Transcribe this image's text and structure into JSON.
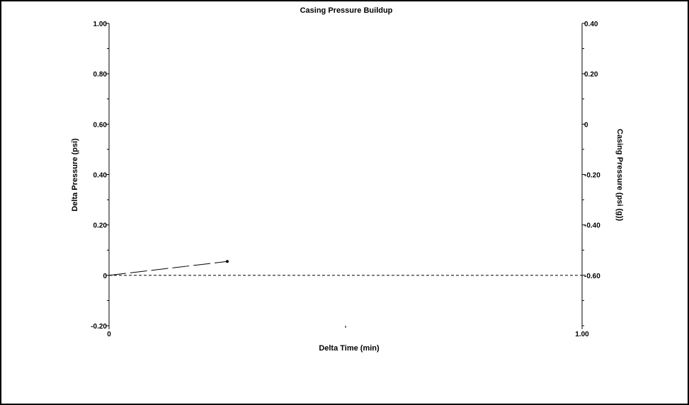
{
  "chart_data": {
    "type": "line",
    "title": "Casing Pressure Buildup",
    "xlabel": "Delta Time (min)",
    "ylabel": "Delta Pressure (psi)",
    "y2label": "Casing Pressure (psi (g))",
    "xlim": [
      0,
      1.0
    ],
    "ylim": [
      -0.2,
      1.0
    ],
    "y2lim": [
      -0.8,
      0.4
    ],
    "x_ticks": [
      {
        "value": 0,
        "label": "0"
      },
      {
        "value": 1.0,
        "label": "1.00"
      }
    ],
    "x_minor_ticks": [
      0.5
    ],
    "y_ticks": [
      {
        "value": -0.2,
        "label": "-0.20"
      },
      {
        "value": 0,
        "label": "0"
      },
      {
        "value": 0.2,
        "label": "0.20"
      },
      {
        "value": 0.4,
        "label": "0.40"
      },
      {
        "value": 0.6,
        "label": "0.60"
      },
      {
        "value": 0.8,
        "label": "0.80"
      },
      {
        "value": 1.0,
        "label": "1.00"
      }
    ],
    "y2_ticks": [
      {
        "value": -0.6,
        "label": "-0.60"
      },
      {
        "value": -0.4,
        "label": "-0.40"
      },
      {
        "value": -0.2,
        "label": "-0.20"
      },
      {
        "value": 0,
        "label": "0"
      },
      {
        "value": 0.2,
        "label": "0.20"
      },
      {
        "value": 0.4,
        "label": "0.40"
      }
    ],
    "grid": false,
    "series": [
      {
        "axis": "left",
        "style": "long-dash",
        "color": "#000000",
        "x": [
          0,
          0.25
        ],
        "y": [
          0,
          0.055
        ],
        "end_marker": true
      },
      {
        "axis": "right",
        "style": "short-dash",
        "color": "#000000",
        "x": [
          0,
          1.0
        ],
        "y": [
          -0.6,
          -0.6
        ]
      }
    ]
  }
}
